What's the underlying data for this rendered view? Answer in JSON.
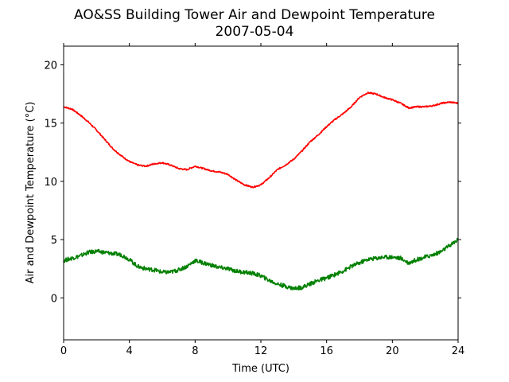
{
  "chart_data": {
    "type": "line",
    "title": "AO&SS Building Tower Air and Dewpoint Temperature",
    "subtitle": "2007-05-04",
    "xlabel": "Time (UTC)",
    "ylabel": "Air and Dewpoint Temperature (°C)",
    "xlim": [
      0,
      24
    ],
    "ylim": [
      -3.6,
      21.6
    ],
    "x_ticks": [
      0,
      4,
      8,
      12,
      16,
      20,
      24
    ],
    "y_ticks": [
      0,
      5,
      10,
      15,
      20
    ],
    "grid": false,
    "legend": false,
    "series": [
      {
        "color": "#ff0000",
        "x": [
          0,
          0.5,
          1,
          1.5,
          2,
          2.5,
          3,
          3.5,
          4,
          4.5,
          5,
          5.5,
          6,
          6.5,
          7,
          7.5,
          8,
          8.5,
          9,
          9.5,
          10,
          10.5,
          11,
          11.5,
          12,
          12.5,
          13,
          13.5,
          14,
          14.5,
          15,
          15.5,
          16,
          16.5,
          17,
          17.5,
          18,
          18.5,
          19,
          19.5,
          20,
          20.5,
          21,
          21.5,
          22,
          22.5,
          23,
          23.5,
          24
        ],
        "values": [
          16.4,
          16.2,
          15.7,
          15.1,
          14.4,
          13.6,
          12.8,
          12.2,
          11.7,
          11.4,
          11.3,
          11.5,
          11.6,
          11.4,
          11.1,
          11.0,
          11.3,
          11.1,
          10.9,
          10.8,
          10.6,
          10.1,
          9.7,
          9.5,
          9.7,
          10.3,
          11.0,
          11.4,
          11.9,
          12.6,
          13.4,
          14.0,
          14.7,
          15.3,
          15.8,
          16.4,
          17.2,
          17.6,
          17.5,
          17.2,
          17.0,
          16.7,
          16.3,
          16.4,
          16.4,
          16.5,
          16.7,
          16.8,
          16.7
        ]
      },
      {
        "color": "#008000",
        "x": [
          0,
          0.5,
          1,
          1.5,
          2,
          2.5,
          3,
          3.5,
          4,
          4.5,
          5,
          5.5,
          6,
          6.5,
          7,
          7.5,
          8,
          8.5,
          9,
          9.5,
          10,
          10.5,
          11,
          11.5,
          12,
          12.5,
          13,
          13.5,
          14,
          14.5,
          15,
          15.5,
          16,
          16.5,
          17,
          17.5,
          18,
          18.5,
          19,
          19.5,
          20,
          20.5,
          21,
          21.5,
          22,
          22.5,
          23,
          23.5,
          24
        ],
        "values": [
          3.2,
          3.4,
          3.6,
          3.9,
          4.0,
          3.9,
          3.8,
          3.7,
          3.3,
          2.7,
          2.5,
          2.4,
          2.2,
          2.2,
          2.4,
          2.7,
          3.2,
          3.0,
          2.8,
          2.6,
          2.5,
          2.3,
          2.2,
          2.1,
          1.9,
          1.5,
          1.2,
          1.0,
          0.8,
          0.9,
          1.2,
          1.5,
          1.7,
          2.0,
          2.3,
          2.7,
          3.0,
          3.3,
          3.4,
          3.5,
          3.5,
          3.4,
          3.0,
          3.3,
          3.5,
          3.7,
          4.0,
          4.5,
          5.0
        ]
      }
    ]
  }
}
